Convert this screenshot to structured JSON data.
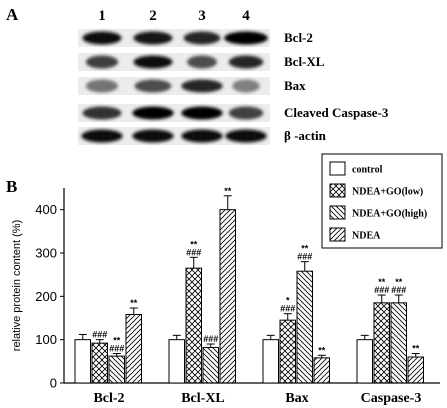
{
  "panel_a": {
    "label": "A",
    "lanes": [
      "1",
      "2",
      "3",
      "4"
    ],
    "blots": [
      {
        "label": "Bcl-2",
        "intensity": [
          0.95,
          0.9,
          0.85,
          1.0
        ],
        "width": [
          0.85,
          0.85,
          0.8,
          0.95
        ]
      },
      {
        "label": "Bcl-XL",
        "intensity": [
          0.75,
          0.95,
          0.7,
          0.85
        ],
        "width": [
          0.7,
          0.85,
          0.65,
          0.75
        ]
      },
      {
        "label": "Bax",
        "intensity": [
          0.55,
          0.7,
          0.85,
          0.5
        ],
        "width": [
          0.7,
          0.8,
          0.9,
          0.6
        ]
      },
      {
        "label": "Cleaved Caspase-3",
        "intensity": [
          0.8,
          1.0,
          1.0,
          0.75
        ],
        "width": [
          0.85,
          0.9,
          0.9,
          0.75
        ]
      },
      {
        "label": "β -actin",
        "intensity": [
          0.95,
          0.95,
          0.95,
          0.95
        ],
        "width": [
          0.9,
          0.9,
          0.9,
          0.9
        ]
      }
    ]
  },
  "chart_data": {
    "type": "bar",
    "panel_label": "B",
    "title": "",
    "xlabel": "",
    "ylabel": "relative protein content (%)",
    "ylim": [
      0,
      450
    ],
    "yticks": [
      0,
      100,
      200,
      300,
      400
    ],
    "categories": [
      "Bcl-2",
      "Bcl-XL",
      "Bax",
      "Caspase-3"
    ],
    "series": [
      {
        "name": "control",
        "pattern": "blank",
        "values": [
          100,
          100,
          100,
          100
        ],
        "errors": [
          12,
          10,
          10,
          10
        ],
        "annotations": [
          "",
          "",
          "",
          ""
        ]
      },
      {
        "name": "NDEA+GO(low)",
        "pattern": "crosshatch",
        "values": [
          92,
          265,
          145,
          185
        ],
        "errors": [
          8,
          25,
          15,
          18
        ],
        "annotations": [
          "###",
          "**\n###",
          "*\n###",
          "**\n###"
        ]
      },
      {
        "name": "NDEA+GO(high)",
        "pattern": "backslash",
        "values": [
          62,
          82,
          258,
          185
        ],
        "errors": [
          6,
          8,
          22,
          18
        ],
        "annotations": [
          "**\n###",
          "###",
          "**\n###",
          "**\n###"
        ]
      },
      {
        "name": "NDEA",
        "pattern": "slash",
        "values": [
          158,
          400,
          58,
          60
        ],
        "errors": [
          15,
          32,
          6,
          8
        ],
        "annotations": [
          "**",
          "**",
          "**",
          "**"
        ]
      }
    ],
    "grid": false,
    "legend_position": "top-right"
  }
}
